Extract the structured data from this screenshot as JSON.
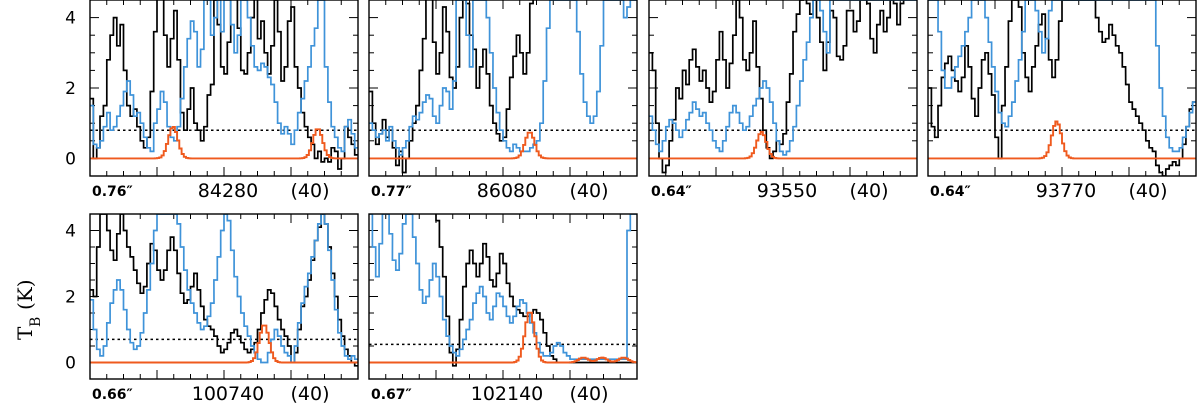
{
  "chart_data": {
    "type": "line",
    "ylabel_main": "T",
    "ylabel_sub": "B",
    "ylabel_unit": "(K)",
    "ylim": [
      -0.5,
      4.5
    ],
    "yticks": [
      0,
      2,
      4
    ],
    "colors": {
      "observed": "#000000",
      "model_full": "#3f93d9",
      "model_species": "#ef5a1e",
      "threshold": "#000000"
    },
    "panels": [
      {
        "beam": "0.76″",
        "freq": "84280",
        "tag": "(40)",
        "threshold": 0.8,
        "obs": [
          1.7,
          0.0,
          0.3,
          1.2,
          1.5,
          2.8,
          3.5,
          4.0,
          3.2,
          3.8,
          2.5,
          1.5,
          1.2,
          1.4,
          0.9,
          0.5,
          0.3,
          0.6,
          1.9,
          3.6,
          4.8,
          4.8,
          3.5,
          2.6,
          3.4,
          4.2,
          2.8,
          1.3,
          0.8,
          1.4,
          2.0,
          1.0,
          0.8,
          0.5,
          0.9,
          1.8,
          2.1,
          4.5,
          3.8,
          2.6,
          2.4,
          3.3,
          4.8,
          4.8,
          3.7,
          2.5,
          2.4,
          3.0,
          4.0,
          4.8,
          3.4,
          3.9,
          3.0,
          2.4,
          3.2,
          4.5,
          3.6,
          2.2,
          2.6,
          3.9,
          4.3,
          2.6,
          2.0,
          1.3,
          0.9,
          0.6,
          0.4,
          0.0,
          0.2,
          -0.1,
          0.0,
          -0.1,
          0.3,
          0.2,
          -0.3,
          0.0,
          0.9,
          0.6,
          0.4,
          0.1
        ],
        "full": [
          1.5,
          0.4,
          0.3,
          0.5,
          0.9,
          1.3,
          0.8,
          0.9,
          1.2,
          1.5,
          1.9,
          2.2,
          1.8,
          1.2,
          1.3,
          1.0,
          0.6,
          0.3,
          0.2,
          1.0,
          1.4,
          1.9,
          1.6,
          0.9,
          0.6,
          0.5,
          0.9,
          1.7,
          2.6,
          3.4,
          3.9,
          3.6,
          2.6,
          3.1,
          4.5,
          4.5,
          3.5,
          4.0,
          4.5,
          3.6,
          4.5,
          4.5,
          3.8,
          3.0,
          3.5,
          4.5,
          4.5,
          4.0,
          3.2,
          2.6,
          2.5,
          2.7,
          2.6,
          2.3,
          2.1,
          1.6,
          1.0,
          0.7,
          0.9,
          0.7,
          0.4,
          0.8,
          1.3,
          1.7,
          2.2,
          2.6,
          3.2,
          3.7,
          4.5,
          4.5,
          2.6,
          1.6,
          0.9,
          0.6,
          0.3,
          0.2,
          0.9,
          1.1,
          0.7,
          0.3
        ],
        "species": [
          [
            0.31,
            0.9
          ],
          [
            0.85,
            0.85
          ]
        ]
      },
      {
        "beam": "0.77″",
        "freq": "86080",
        "tag": "(40)",
        "threshold": 0.8,
        "obs": [
          1.9,
          1.0,
          0.4,
          0.7,
          1.1,
          0.6,
          0.8,
          0.3,
          -0.2,
          0.2,
          -0.4,
          0.0,
          0.5,
          1.0,
          1.5,
          2.5,
          3.4,
          4.7,
          4.7,
          3.3,
          2.4,
          3.0,
          4.3,
          3.6,
          2.3,
          2.0,
          2.6,
          4.0,
          4.6,
          4.4,
          3.5,
          3.1,
          2.0,
          2.6,
          3.1,
          2.4,
          1.5,
          1.0,
          0.7,
          0.5,
          0.6,
          1.4,
          2.3,
          2.9,
          3.5,
          3.0,
          2.4,
          3.0,
          4.4,
          4.8,
          4.8,
          4.8,
          4.8,
          4.8,
          4.8,
          4.8,
          4.8,
          4.8,
          4.8,
          4.8,
          4.8,
          4.8,
          4.8,
          4.8,
          4.8,
          4.8,
          4.8,
          4.8,
          4.8,
          4.8,
          4.8,
          4.8,
          4.8,
          4.8,
          4.8,
          4.8,
          4.8,
          4.8,
          4.8,
          4.8
        ],
        "full": [
          1.0,
          0.8,
          0.6,
          0.7,
          0.8,
          0.5,
          0.9,
          0.5,
          0.3,
          0.1,
          0.3,
          0.5,
          0.9,
          1.2,
          1.1,
          1.3,
          1.6,
          1.8,
          1.7,
          1.2,
          1.0,
          1.5,
          2.0,
          1.9,
          1.4,
          2.2,
          4.5,
          4.5,
          4.5,
          3.5,
          2.6,
          4.5,
          4.5,
          4.5,
          4.5,
          4.0,
          3.0,
          2.0,
          1.3,
          0.8,
          0.5,
          0.3,
          0.2,
          0.4,
          0.3,
          0.2,
          0.2,
          0.2,
          0.3,
          0.4,
          0.5,
          1.0,
          2.2,
          3.7,
          4.5,
          4.5,
          4.5,
          4.5,
          4.5,
          4.5,
          4.5,
          4.5,
          3.6,
          2.4,
          1.6,
          1.2,
          1.0,
          1.2,
          1.9,
          3.2,
          4.5,
          4.5,
          4.5,
          4.5,
          4.5,
          4.5,
          4.0,
          4.3,
          4.5,
          4.5
        ],
        "species": [
          [
            0.6,
            0.75
          ]
        ]
      },
      {
        "beam": "0.64″",
        "freq": "93550",
        "tag": "(40)",
        "threshold": 0.8,
        "obs": [
          3.0,
          2.5,
          1.0,
          0.0,
          -0.4,
          -0.2,
          0.5,
          1.1,
          2.0,
          1.7,
          2.5,
          2.1,
          2.8,
          3.1,
          2.6,
          2.2,
          2.5,
          2.0,
          1.6,
          1.9,
          2.8,
          3.6,
          2.8,
          2.0,
          2.7,
          3.5,
          4.5,
          4.0,
          2.8,
          2.5,
          3.0,
          3.9,
          2.6,
          1.7,
          0.8,
          0.3,
          0.0,
          0.2,
          0.5,
          0.4,
          0.7,
          1.6,
          2.4,
          3.6,
          4.1,
          4.5,
          4.6,
          4.4,
          4.1,
          4.5,
          4.0,
          3.3,
          2.5,
          3.3,
          4.2,
          4.0,
          2.9,
          2.8,
          3.2,
          4.2,
          4.2,
          3.6,
          3.9,
          4.8,
          4.8,
          4.4,
          3.4,
          3.0,
          3.8,
          4.2,
          3.6,
          4.0,
          4.6,
          4.4,
          3.8,
          4.4,
          4.8,
          4.8,
          4.8,
          4.8
        ],
        "full": [
          1.2,
          0.8,
          0.4,
          0.2,
          0.5,
          0.9,
          1.1,
          1.0,
          0.8,
          0.6,
          0.8,
          1.1,
          1.3,
          1.6,
          1.4,
          1.2,
          1.3,
          1.0,
          0.8,
          0.5,
          0.3,
          0.2,
          0.5,
          0.9,
          1.3,
          1.5,
          1.3,
          1.0,
          0.8,
          0.9,
          1.2,
          1.5,
          1.7,
          2.0,
          2.2,
          2.0,
          1.6,
          1.0,
          0.5,
          0.2,
          0.1,
          0.2,
          0.5,
          0.9,
          1.5,
          2.2,
          2.8,
          3.3,
          4.0,
          4.5,
          4.5,
          4.2,
          3.6,
          3.0,
          4.5,
          4.5,
          4.5,
          4.5,
          4.5,
          4.5,
          4.5,
          4.5,
          4.5,
          4.5,
          4.5,
          4.5,
          4.5,
          4.5,
          4.5,
          4.5,
          4.5,
          4.5,
          4.5,
          4.5,
          4.5,
          4.5,
          4.5,
          4.5,
          4.5,
          4.5
        ],
        "species": [
          [
            0.42,
            0.75
          ]
        ]
      },
      {
        "beam": "0.64″",
        "freq": "93770",
        "tag": "(40)",
        "threshold": 0.8,
        "obs": [
          2.0,
          0.9,
          0.6,
          1.5,
          2.3,
          2.7,
          2.9,
          2.5,
          2.2,
          1.9,
          2.3,
          3.2,
          2.6,
          1.7,
          1.2,
          2.0,
          2.8,
          3.0,
          2.4,
          1.8,
          0.6,
          0.0,
          1.5,
          2.6,
          3.9,
          4.5,
          4.5,
          4.3,
          3.0,
          2.3,
          1.9,
          2.6,
          3.2,
          3.8,
          4.1,
          3.4,
          2.8,
          2.3,
          2.8,
          3.9,
          4.5,
          4.5,
          4.5,
          4.5,
          4.5,
          4.5,
          4.5,
          4.5,
          4.5,
          4.5,
          4.0,
          3.6,
          3.3,
          3.4,
          3.8,
          3.5,
          3.2,
          3.0,
          2.6,
          2.1,
          1.6,
          1.4,
          1.2,
          1.0,
          0.8,
          0.5,
          0.3,
          0.2,
          -0.2,
          -0.4,
          -0.5,
          -0.3,
          -0.2,
          -0.1,
          -0.2,
          0.0,
          0.4,
          0.9,
          1.4,
          1.6
        ],
        "full": [
          4.5,
          4.5,
          4.5,
          3.6,
          2.5,
          2.0,
          2.0,
          2.3,
          2.6,
          2.9,
          3.2,
          3.6,
          4.0,
          4.5,
          4.5,
          4.5,
          4.5,
          4.0,
          3.3,
          2.6,
          1.9,
          1.3,
          1.0,
          0.9,
          1.2,
          1.6,
          2.2,
          2.8,
          3.6,
          4.5,
          4.5,
          4.5,
          4.2,
          3.6,
          3.0,
          3.4,
          4.2,
          4.5,
          4.5,
          4.5,
          4.5,
          4.5,
          4.5,
          4.5,
          4.5,
          4.5,
          4.5,
          4.5,
          4.5,
          4.5,
          4.5,
          4.5,
          4.5,
          4.5,
          4.5,
          4.5,
          4.5,
          4.5,
          4.5,
          4.5,
          4.5,
          4.5,
          4.5,
          4.5,
          4.5,
          4.5,
          4.5,
          4.5,
          3.2,
          2.0,
          1.2,
          0.6,
          0.3,
          0.2,
          0.2,
          0.3,
          0.6,
          0.9,
          1.3,
          1.6
        ],
        "species": [
          [
            0.48,
            1.05
          ]
        ]
      },
      {
        "beam": "0.66″",
        "freq": "100740",
        "tag": "(40)",
        "threshold": 0.7,
        "obs": [
          2.2,
          2.0,
          3.5,
          4.5,
          4.5,
          4.0,
          3.4,
          3.1,
          3.9,
          4.5,
          4.0,
          3.5,
          3.2,
          2.8,
          2.4,
          2.1,
          2.3,
          3.0,
          3.6,
          3.4,
          2.8,
          2.5,
          2.8,
          3.4,
          3.8,
          3.4,
          2.7,
          2.1,
          1.8,
          1.9,
          2.3,
          2.7,
          2.2,
          1.7,
          1.3,
          1.1,
          1.0,
          0.8,
          0.5,
          0.3,
          0.4,
          0.6,
          0.9,
          1.0,
          0.8,
          0.6,
          0.4,
          0.3,
          0.4,
          0.6,
          1.0,
          1.5,
          1.9,
          2.2,
          2.1,
          1.7,
          1.3,
          1.0,
          0.8,
          0.5,
          0.0,
          0.3,
          1.0,
          1.7,
          2.0,
          2.5,
          3.1,
          3.7,
          4.1,
          4.5,
          4.2,
          3.5,
          2.7,
          2.0,
          1.3,
          0.8,
          0.4,
          0.2,
          0.0,
          -0.1
        ],
        "full": [
          1.9,
          1.0,
          0.4,
          0.2,
          0.5,
          1.2,
          1.8,
          2.2,
          2.5,
          2.2,
          1.6,
          1.0,
          0.6,
          0.4,
          0.5,
          0.9,
          1.5,
          2.2,
          3.0,
          4.0,
          4.5,
          4.5,
          4.5,
          4.5,
          4.5,
          4.5,
          4.2,
          3.5,
          2.8,
          2.2,
          1.8,
          1.5,
          1.2,
          1.0,
          1.1,
          1.4,
          1.8,
          2.5,
          3.2,
          4.0,
          4.5,
          4.3,
          3.4,
          2.6,
          2.0,
          1.5,
          1.1,
          0.8,
          0.5,
          0.3,
          0.1,
          0.0,
          0.0,
          0.3,
          0.7,
          1.0,
          0.8,
          0.5,
          0.3,
          0.2,
          0.0,
          0.5,
          1.2,
          1.8,
          2.3,
          2.7,
          3.2,
          3.7,
          4.2,
          4.5,
          4.2,
          3.4,
          2.5,
          1.6,
          0.9,
          0.5,
          0.2,
          0.1,
          0.2,
          0.1
        ],
        "species": [
          [
            0.65,
            1.15
          ]
        ]
      },
      {
        "beam": "0.67″",
        "freq": "102140",
        "tag": "(40)",
        "threshold": 0.55,
        "obs": [
          4.8,
          4.8,
          4.8,
          4.8,
          4.8,
          4.8,
          4.8,
          4.8,
          4.8,
          4.8,
          4.8,
          4.8,
          4.8,
          4.8,
          4.8,
          4.8,
          4.8,
          4.8,
          4.8,
          4.8,
          4.3,
          3.5,
          2.6,
          1.4,
          0.3,
          -0.1,
          0.4,
          1.3,
          2.3,
          3.0,
          3.4,
          3.0,
          2.6,
          3.0,
          3.6,
          3.2,
          2.5,
          2.3,
          2.7,
          3.3,
          3.0,
          2.4,
          2.0,
          1.7,
          1.6,
          1.5,
          1.4,
          1.4,
          1.5,
          1.6,
          1.5,
          1.3,
          0.9,
          0.5,
          0.2,
          0.1,
          0.0,
          0.0,
          0.0,
          0.0,
          0.0,
          0.0,
          0.0,
          0.0,
          0.0,
          0.0,
          0.0,
          0.0,
          0.0,
          0.0,
          0.0,
          0.0,
          0.0,
          0.0,
          0.0,
          0.0,
          0.0,
          0.0,
          0.0,
          0.0
        ],
        "full": [
          4.5,
          3.5,
          2.6,
          3.6,
          4.5,
          4.5,
          3.9,
          3.1,
          2.8,
          3.3,
          4.2,
          4.5,
          4.5,
          3.8,
          3.0,
          2.2,
          1.8,
          2.0,
          2.5,
          3.0,
          2.6,
          2.0,
          1.3,
          0.8,
          0.5,
          0.3,
          0.2,
          0.4,
          0.7,
          1.0,
          1.3,
          1.8,
          2.1,
          2.3,
          2.0,
          1.5,
          1.3,
          1.7,
          2.1,
          2.0,
          1.7,
          1.4,
          1.2,
          1.4,
          1.7,
          1.9,
          1.8,
          1.5,
          1.2,
          0.9,
          0.6,
          0.3,
          0.2,
          0.2,
          0.3,
          0.5,
          0.6,
          0.5,
          0.3,
          0.2,
          0.1,
          0.1,
          0.1,
          0.1,
          0.1,
          0.1,
          0.1,
          0.1,
          0.1,
          0.1,
          0.1,
          0.1,
          0.1,
          0.1,
          0.1,
          0.1,
          0.1,
          4.0,
          4.5,
          4.5
        ],
        "species": [
          [
            0.6,
            1.55
          ],
          [
            0.8,
            0.15
          ],
          [
            0.87,
            0.15
          ],
          [
            0.95,
            0.15
          ]
        ]
      }
    ]
  }
}
